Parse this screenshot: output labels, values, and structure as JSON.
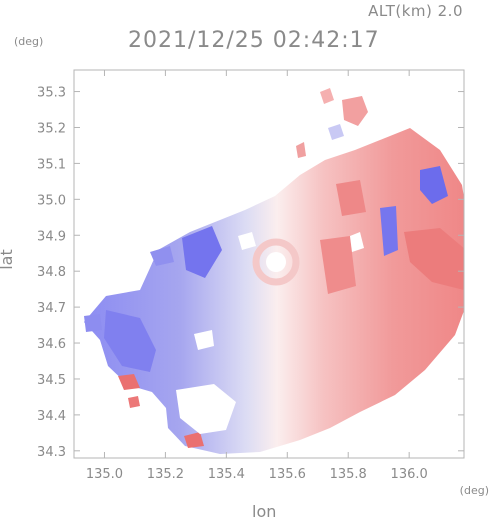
{
  "header": {
    "altitude_label": "ALT(km) 2.0",
    "timestamp": "2021/12/25 02:42:17"
  },
  "axes": {
    "x_unit": "(deg)",
    "y_unit": "(deg)",
    "x_label": "lon",
    "y_label": "lat",
    "x_ticks": [
      "135.0",
      "135.2",
      "135.4",
      "135.6",
      "135.8",
      "136.0"
    ],
    "y_ticks": [
      "35.3",
      "35.2",
      "35.1",
      "35.0",
      "34.9",
      "34.8",
      "34.7",
      "34.6",
      "34.5",
      "34.4",
      "34.3"
    ],
    "x_range": [
      134.9,
      136.18
    ],
    "y_range": [
      34.28,
      35.36
    ]
  },
  "colors": {
    "approaching": "#7b7bf0",
    "receding": "#f08080",
    "frame": "#b5b5b5",
    "text": "#8a8a8a"
  }
}
